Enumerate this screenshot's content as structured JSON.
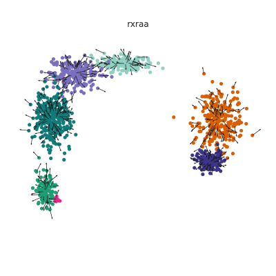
{
  "chart_data": {
    "type": "scatter",
    "title": "rxraa",
    "xlabel": "",
    "ylabel": "",
    "grid": false,
    "legend": "none",
    "axes_visible": false,
    "arrow_color": "#1a1a1a",
    "series": [
      {
        "color": "#8fd0c3",
        "center": [
          -0.5,
          3.6
        ],
        "spread": [
          0.85,
          0.35
        ],
        "count": 170
      },
      {
        "color": "#7b6fbf",
        "center": [
          -2.3,
          3.1
        ],
        "spread": [
          0.75,
          0.7
        ],
        "count": 230
      },
      {
        "color": "#0f7c7a",
        "center": [
          -3.1,
          0.9
        ],
        "spread": [
          0.55,
          1.2
        ],
        "count": 320
      },
      {
        "color": "#1d9e74",
        "center": [
          -3.35,
          -2.6
        ],
        "spread": [
          0.28,
          0.85
        ],
        "count": 120
      },
      {
        "color": "#d95f02",
        "center": [
          2.95,
          0.9
        ],
        "spread": [
          0.8,
          1.2
        ],
        "count": 240
      },
      {
        "color": "#3d348b",
        "center": [
          2.6,
          -1.15
        ],
        "spread": [
          0.38,
          0.45
        ],
        "count": 160
      },
      {
        "color": "#e7298a",
        "center": [
          -2.95,
          -3.0
        ],
        "spread": [
          0.1,
          0.12
        ],
        "count": 12
      }
    ]
  }
}
